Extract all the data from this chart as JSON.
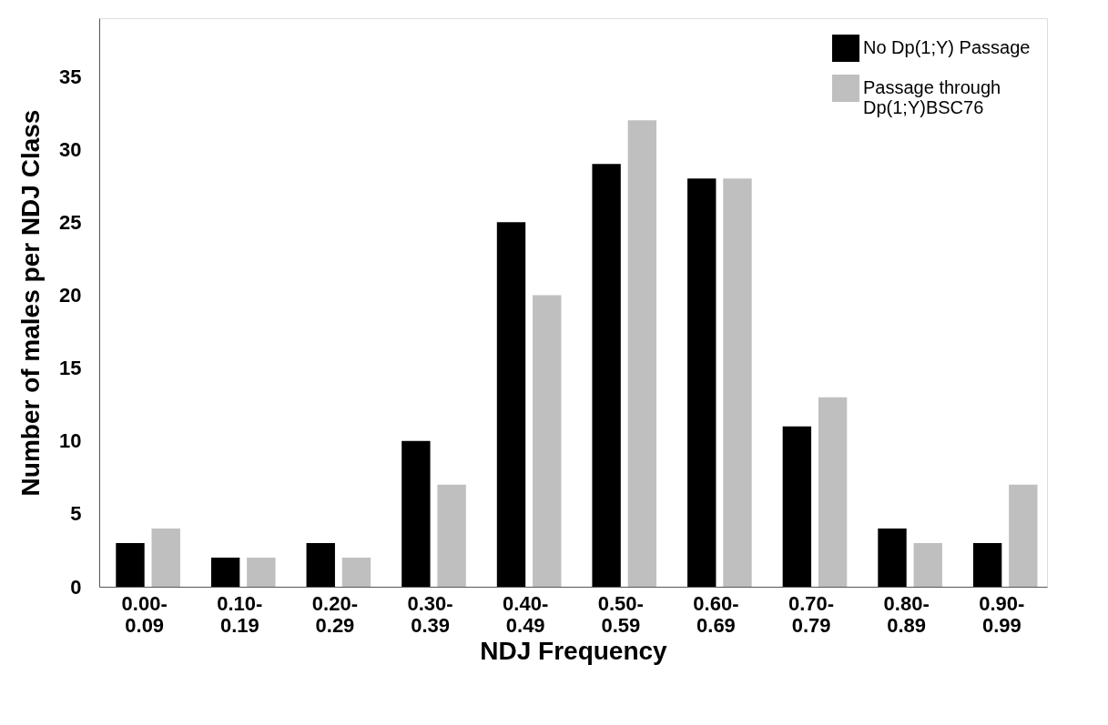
{
  "chart_data": {
    "type": "bar",
    "xlabel": "NDJ Frequency",
    "ylabel": "Number of males per NDJ Class",
    "categories": [
      "0.00-0.09",
      "0.10-0.19",
      "0.20-0.29",
      "0.30-0.39",
      "0.40-0.49",
      "0.50-0.59",
      "0.60-0.69",
      "0.70-0.79",
      "0.80-0.89",
      "0.90-0.99"
    ],
    "series": [
      {
        "name": "No Dp(1;Y) Passage",
        "color": "#000000",
        "values": [
          3,
          2,
          3,
          10,
          25,
          29,
          28,
          11,
          4,
          3
        ]
      },
      {
        "name": "Passage through Dp(1;Y)BSC76",
        "color": "#bfbfbf",
        "values": [
          4,
          2,
          2,
          7,
          20,
          32,
          28,
          13,
          3,
          7
        ]
      }
    ],
    "ylim": [
      0,
      39
    ],
    "yticks": [
      0,
      5,
      10,
      15,
      20,
      25,
      30,
      35
    ],
    "grid": false,
    "legend": "top right"
  }
}
